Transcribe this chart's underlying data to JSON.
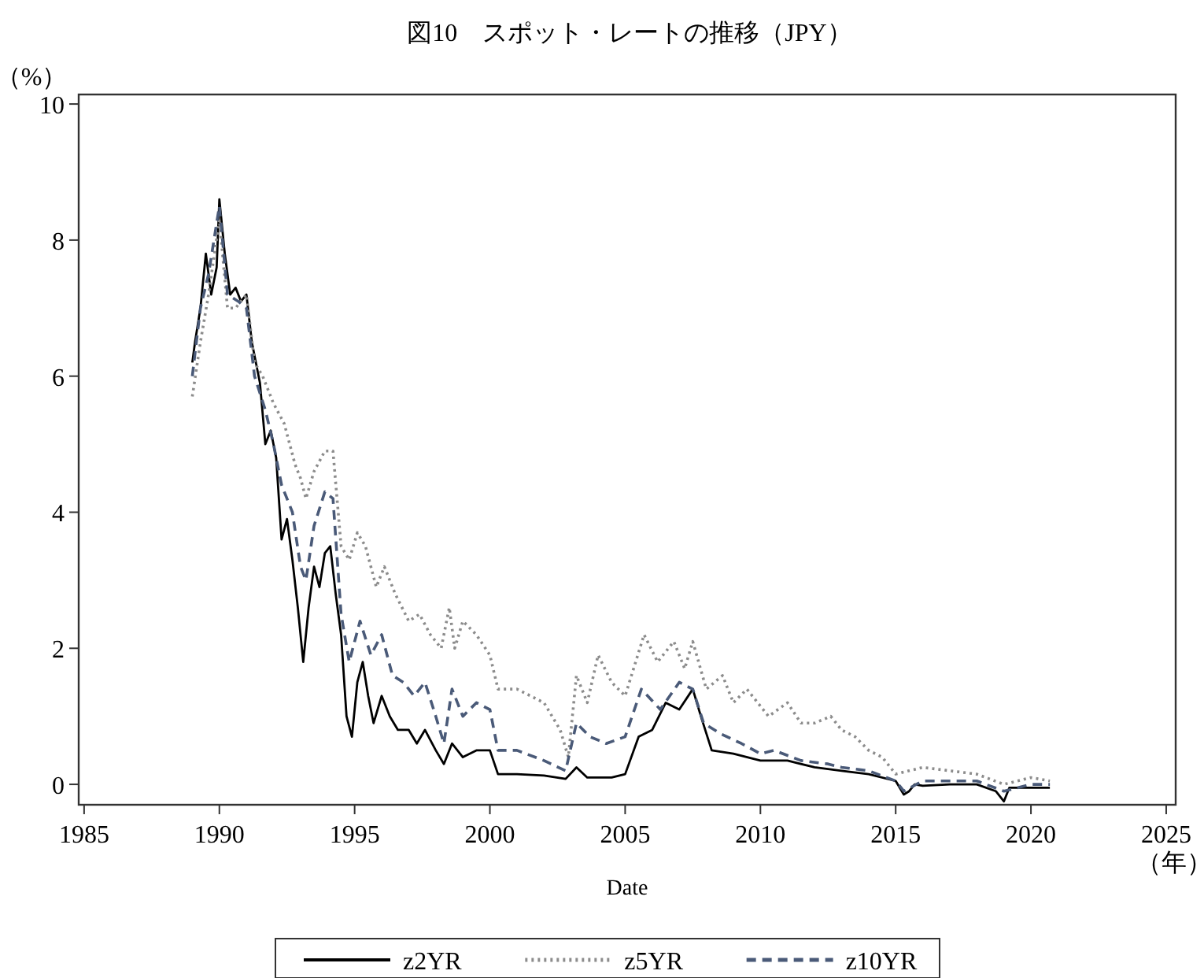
{
  "chart_data": {
    "type": "line",
    "title": "図10　スポット・レートの推移（JPY）",
    "xlabel": "Date",
    "ylabel": "（%）",
    "annotations": [
      "（年）"
    ],
    "xlim": [
      1984.8,
      2025.35
    ],
    "xticks": [
      1985,
      1990,
      1995,
      2000,
      2005,
      2010,
      2015,
      2020,
      2025
    ],
    "ylim": [
      -0.3,
      10.14
    ],
    "yticks": [
      0,
      2,
      4,
      6,
      8,
      10
    ],
    "grid": false,
    "legend": "bottom",
    "marker": "none",
    "series": [
      {
        "name": "z2YR",
        "color": "#000000",
        "line_style": "solid",
        "x": [
          1989.0,
          1989.1,
          1989.3,
          1989.5,
          1989.7,
          1989.9,
          1990.0,
          1990.2,
          1990.4,
          1990.6,
          1990.8,
          1991.0,
          1991.2,
          1991.5,
          1991.7,
          1991.9,
          1992.1,
          1992.3,
          1992.5,
          1992.7,
          1992.9,
          1993.1,
          1993.3,
          1993.5,
          1993.7,
          1993.9,
          1994.1,
          1994.3,
          1994.5,
          1994.7,
          1994.9,
          1995.1,
          1995.3,
          1995.5,
          1995.7,
          1996.0,
          1996.3,
          1996.6,
          1997.0,
          1997.3,
          1997.6,
          1998.0,
          1998.3,
          1998.6,
          1999.0,
          1999.5,
          2000.0,
          2000.3,
          2001.0,
          2002.0,
          2002.8,
          2003.2,
          2003.6,
          2004.5,
          2005.0,
          2005.5,
          2006.0,
          2006.5,
          2007.0,
          2007.5,
          2007.8,
          2008.2,
          2009.0,
          2010.0,
          2011.0,
          2012.0,
          2013.0,
          2014.0,
          2015.0,
          2015.3,
          2015.5,
          2015.7,
          2016.0,
          2017.0,
          2018.0,
          2018.7,
          2019.0,
          2019.2,
          2020.0,
          2020.7
        ],
        "values": [
          6.2,
          6.5,
          7.0,
          7.8,
          7.2,
          7.6,
          8.6,
          7.8,
          7.2,
          7.3,
          7.1,
          7.2,
          6.5,
          5.9,
          5.0,
          5.2,
          4.8,
          3.6,
          3.9,
          3.3,
          2.6,
          1.8,
          2.6,
          3.2,
          2.9,
          3.4,
          3.5,
          2.8,
          2.2,
          1.0,
          0.7,
          1.5,
          1.8,
          1.3,
          0.9,
          1.3,
          1.0,
          0.8,
          0.8,
          0.6,
          0.8,
          0.5,
          0.3,
          0.6,
          0.4,
          0.5,
          0.5,
          0.15,
          0.15,
          0.13,
          0.08,
          0.25,
          0.1,
          0.1,
          0.15,
          0.7,
          0.8,
          1.2,
          1.1,
          1.4,
          1.0,
          0.5,
          0.45,
          0.35,
          0.35,
          0.25,
          0.2,
          0.15,
          0.05,
          -0.15,
          -0.1,
          0.0,
          -0.02,
          0.0,
          0.0,
          -0.1,
          -0.25,
          -0.05,
          -0.05,
          -0.05
        ]
      },
      {
        "name": "z5YR",
        "color": "#8c8c8c",
        "line_style": "dotted",
        "x": [
          1989.0,
          1989.3,
          1989.6,
          1990.0,
          1990.3,
          1990.6,
          1991.0,
          1991.3,
          1991.6,
          1992.0,
          1992.4,
          1992.8,
          1993.0,
          1993.2,
          1993.5,
          1993.9,
          1994.2,
          1994.5,
          1994.8,
          1995.1,
          1995.4,
          1995.8,
          1996.1,
          1996.5,
          1997.0,
          1997.4,
          1997.8,
          1998.2,
          1998.5,
          1998.7,
          1999.0,
          1999.5,
          2000.0,
          2000.3,
          2001.0,
          2001.5,
          2002.0,
          2002.6,
          2002.9,
          2003.2,
          2003.6,
          2004.0,
          2004.5,
          2005.0,
          2005.7,
          2006.2,
          2006.8,
          2007.2,
          2007.5,
          2008.0,
          2008.6,
          2009.0,
          2009.5,
          2010.3,
          2011.0,
          2011.5,
          2012.0,
          2012.6,
          2013.0,
          2013.5,
          2014.0,
          2014.5,
          2015.0,
          2015.5,
          2016.0,
          2017.0,
          2018.0,
          2019.0,
          2019.5,
          2020.0,
          2020.7
        ],
        "values": [
          5.7,
          6.5,
          7.2,
          8.3,
          7.0,
          7.0,
          7.2,
          6.2,
          6.0,
          5.6,
          5.3,
          4.7,
          4.5,
          4.2,
          4.6,
          4.9,
          4.9,
          3.5,
          3.3,
          3.7,
          3.5,
          2.9,
          3.2,
          2.8,
          2.4,
          2.5,
          2.2,
          2.0,
          2.6,
          2.0,
          2.4,
          2.2,
          1.9,
          1.4,
          1.4,
          1.3,
          1.2,
          0.8,
          0.4,
          1.6,
          1.2,
          1.9,
          1.5,
          1.3,
          2.2,
          1.8,
          2.1,
          1.7,
          2.1,
          1.4,
          1.6,
          1.2,
          1.4,
          1.0,
          1.2,
          0.9,
          0.9,
          1.0,
          0.8,
          0.7,
          0.5,
          0.4,
          0.15,
          0.2,
          0.25,
          0.2,
          0.15,
          0.0,
          0.05,
          0.1,
          0.05
        ]
      },
      {
        "name": "z10YR",
        "color": "#4a5a78",
        "line_style": "dashed",
        "x": [
          1989.0,
          1989.3,
          1989.6,
          1990.0,
          1990.3,
          1990.7,
          1991.0,
          1991.3,
          1991.7,
          1992.0,
          1992.3,
          1992.7,
          1993.0,
          1993.2,
          1993.5,
          1993.9,
          1994.2,
          1994.5,
          1994.8,
          1995.2,
          1995.6,
          1996.0,
          1996.4,
          1996.8,
          1997.2,
          1997.6,
          1998.0,
          1998.3,
          1998.6,
          1999.0,
          1999.5,
          2000.0,
          2000.3,
          2001.0,
          2002.0,
          2002.8,
          2003.2,
          2003.7,
          2004.3,
          2005.0,
          2005.6,
          2006.3,
          2007.0,
          2007.5,
          2007.9,
          2008.5,
          2009.3,
          2010.0,
          2010.5,
          2011.5,
          2012.5,
          2013.0,
          2014.0,
          2015.0,
          2015.3,
          2016.0,
          2017.0,
          2018.0,
          2019.0,
          2020.0,
          2020.7
        ],
        "values": [
          6.0,
          7.0,
          7.5,
          8.5,
          7.2,
          7.1,
          7.0,
          6.0,
          5.5,
          5.0,
          4.4,
          4.0,
          3.2,
          3.0,
          3.8,
          4.3,
          4.2,
          2.5,
          1.8,
          2.4,
          1.9,
          2.2,
          1.6,
          1.5,
          1.3,
          1.5,
          1.0,
          0.6,
          1.4,
          1.0,
          1.2,
          1.1,
          0.5,
          0.5,
          0.35,
          0.2,
          0.9,
          0.7,
          0.6,
          0.7,
          1.4,
          1.1,
          1.5,
          1.4,
          0.9,
          0.75,
          0.6,
          0.45,
          0.5,
          0.35,
          0.3,
          0.25,
          0.2,
          0.05,
          -0.1,
          0.05,
          0.05,
          0.05,
          -0.1,
          0.0,
          0.0
        ]
      }
    ]
  }
}
